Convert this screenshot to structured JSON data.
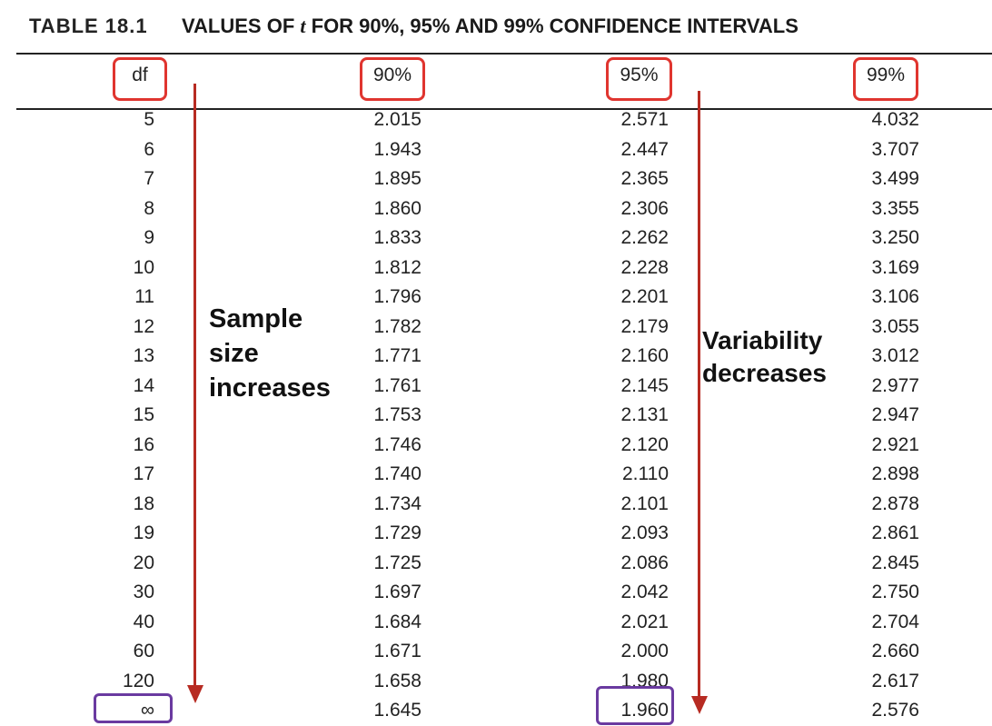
{
  "title": {
    "number": "TABLE 18.1",
    "prefix": "VALUES OF ",
    "symbol": "t",
    "suffix": " FOR 90%, 95% AND 99% CONFIDENCE INTERVALS"
  },
  "columns": [
    "df",
    "90%",
    "95%",
    "99%"
  ],
  "rows": [
    [
      "5",
      "2.015",
      "2.571",
      "4.032"
    ],
    [
      "6",
      "1.943",
      "2.447",
      "3.707"
    ],
    [
      "7",
      "1.895",
      "2.365",
      "3.499"
    ],
    [
      "8",
      "1.860",
      "2.306",
      "3.355"
    ],
    [
      "9",
      "1.833",
      "2.262",
      "3.250"
    ],
    [
      "10",
      "1.812",
      "2.228",
      "3.169"
    ],
    [
      "11",
      "1.796",
      "2.201",
      "3.106"
    ],
    [
      "12",
      "1.782",
      "2.179",
      "3.055"
    ],
    [
      "13",
      "1.771",
      "2.160",
      "3.012"
    ],
    [
      "14",
      "1.761",
      "2.145",
      "2.977"
    ],
    [
      "15",
      "1.753",
      "2.131",
      "2.947"
    ],
    [
      "16",
      "1.746",
      "2.120",
      "2.921"
    ],
    [
      "17",
      "1.740",
      "2.110",
      "2.898"
    ],
    [
      "18",
      "1.734",
      "2.101",
      "2.878"
    ],
    [
      "19",
      "1.729",
      "2.093",
      "2.861"
    ],
    [
      "20",
      "1.725",
      "2.086",
      "2.845"
    ],
    [
      "30",
      "1.697",
      "2.042",
      "2.750"
    ],
    [
      "40",
      "1.684",
      "2.021",
      "2.704"
    ],
    [
      "60",
      "1.671",
      "2.000",
      "2.660"
    ],
    [
      "120",
      "1.658",
      "1.980",
      "2.617"
    ],
    [
      "∞",
      "1.645",
      "1.960",
      "2.576"
    ]
  ],
  "annotations": {
    "sample": [
      "Sample",
      "size",
      "increases"
    ],
    "variability": [
      "Variability",
      "decreases"
    ]
  },
  "colors": {
    "header_box": "#e0352f",
    "arrow": "#b72b22",
    "highlight_box": "#6a3aa0"
  }
}
